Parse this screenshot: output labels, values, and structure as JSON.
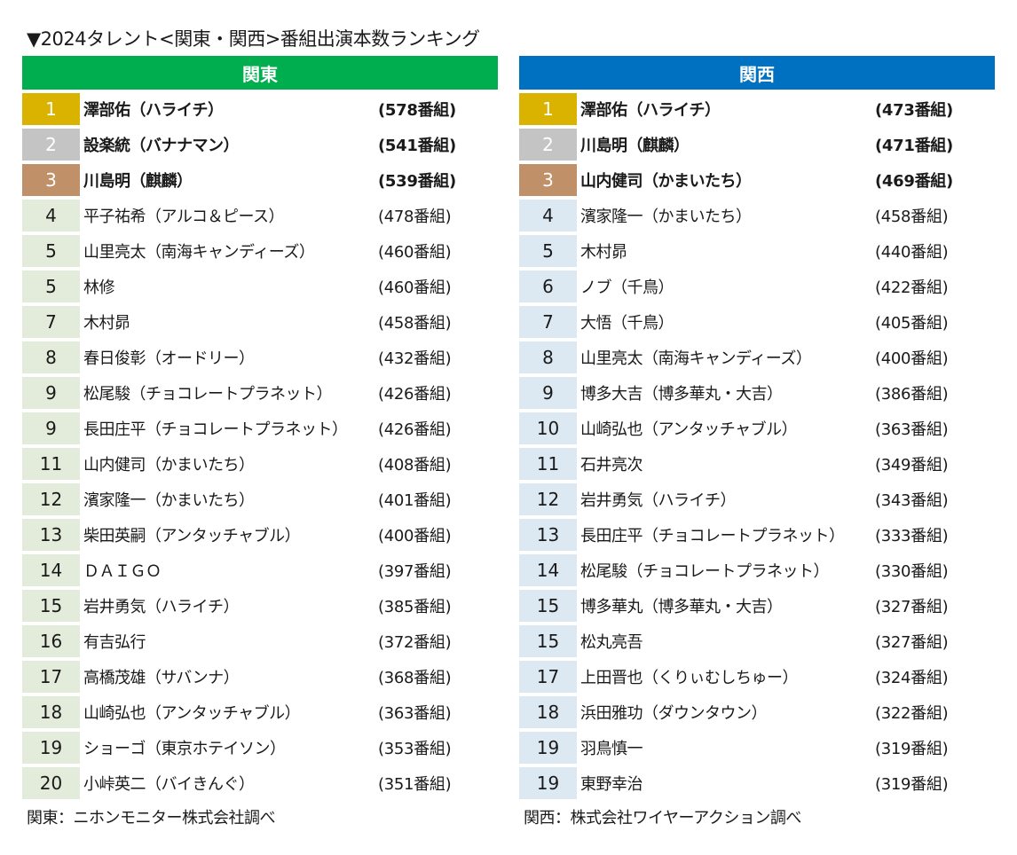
{
  "title": "▼2024タレント<関東・関西>番組出演本数ランキング",
  "colors": {
    "kanto_header": "#00ad4f",
    "kansai_header": "#0070c0",
    "gold": "#d9b300",
    "silver": "#c4c4c4",
    "bronze": "#c09068",
    "kanto_rank_bg": "#e3ecda",
    "kansai_rank_bg": "#dce8f2"
  },
  "kanto": {
    "header": "関東",
    "rows": [
      {
        "rank": "1",
        "name": "澤部佑（ハライチ）",
        "count": "(578番組)"
      },
      {
        "rank": "2",
        "name": "設楽統（バナナマン）",
        "count": "(541番組)"
      },
      {
        "rank": "3",
        "name": "川島明（麒麟）",
        "count": "(539番組)"
      },
      {
        "rank": "4",
        "name": "平子祐希（アルコ＆ピース）",
        "count": "(478番組)"
      },
      {
        "rank": "5",
        "name": "山里亮太（南海キャンディーズ）",
        "count": "(460番組)"
      },
      {
        "rank": "5",
        "name": "林修",
        "count": "(460番組)"
      },
      {
        "rank": "7",
        "name": "木村昴",
        "count": "(458番組)"
      },
      {
        "rank": "8",
        "name": "春日俊彰（オードリー）",
        "count": "(432番組)"
      },
      {
        "rank": "9",
        "name": "松尾駿（チョコレートプラネット）",
        "count": "(426番組)"
      },
      {
        "rank": "9",
        "name": "長田庄平（チョコレートプラネット）",
        "count": "(426番組)"
      },
      {
        "rank": "11",
        "name": "山内健司（かまいたち）",
        "count": "(408番組)"
      },
      {
        "rank": "12",
        "name": "濱家隆一（かまいたち）",
        "count": "(401番組)"
      },
      {
        "rank": "13",
        "name": "柴田英嗣（アンタッチャブル）",
        "count": "(400番組)"
      },
      {
        "rank": "14",
        "name": "ＤＡＩＧＯ",
        "count": "(397番組)"
      },
      {
        "rank": "15",
        "name": "岩井勇気（ハライチ）",
        "count": "(385番組)"
      },
      {
        "rank": "16",
        "name": "有吉弘行",
        "count": "(372番組)"
      },
      {
        "rank": "17",
        "name": "高橋茂雄（サバンナ）",
        "count": "(368番組)"
      },
      {
        "rank": "18",
        "name": "山崎弘也（アンタッチャブル）",
        "count": "(363番組)"
      },
      {
        "rank": "19",
        "name": "ショーゴ（東京ホテイソン）",
        "count": "(353番組)"
      },
      {
        "rank": "20",
        "name": "小峠英二（バイきんぐ）",
        "count": "(351番組)"
      }
    ],
    "source": "関東：ニホンモニター株式会社調べ"
  },
  "kansai": {
    "header": "関西",
    "rows": [
      {
        "rank": "1",
        "name": "澤部佑（ハライチ）",
        "count": "(473番組)"
      },
      {
        "rank": "2",
        "name": "川島明（麒麟）",
        "count": "(471番組)"
      },
      {
        "rank": "3",
        "name": "山内健司（かまいたち）",
        "count": "(469番組)"
      },
      {
        "rank": "4",
        "name": "濱家隆一（かまいたち）",
        "count": "(458番組)"
      },
      {
        "rank": "5",
        "name": "木村昴",
        "count": "(440番組)"
      },
      {
        "rank": "6",
        "name": "ノブ（千鳥）",
        "count": "(422番組)"
      },
      {
        "rank": "7",
        "name": "大悟（千鳥）",
        "count": "(405番組)"
      },
      {
        "rank": "8",
        "name": "山里亮太（南海キャンディーズ）",
        "count": "(400番組)"
      },
      {
        "rank": "9",
        "name": "博多大吉（博多華丸・大吉）",
        "count": "(386番組)"
      },
      {
        "rank": "10",
        "name": "山崎弘也（アンタッチャブル）",
        "count": "(363番組)"
      },
      {
        "rank": "11",
        "name": "石井亮次",
        "count": "(349番組)"
      },
      {
        "rank": "12",
        "name": "岩井勇気（ハライチ）",
        "count": "(343番組)"
      },
      {
        "rank": "13",
        "name": "長田庄平（チョコレートプラネット）",
        "count": "(333番組)"
      },
      {
        "rank": "14",
        "name": "松尾駿（チョコレートプラネット）",
        "count": "(330番組)"
      },
      {
        "rank": "15",
        "name": "博多華丸（博多華丸・大吉）",
        "count": "(327番組)"
      },
      {
        "rank": "15",
        "name": "松丸亮吾",
        "count": "(327番組)"
      },
      {
        "rank": "17",
        "name": "上田晋也（くりぃむしちゅー）",
        "count": "(324番組)"
      },
      {
        "rank": "18",
        "name": "浜田雅功（ダウンタウン）",
        "count": "(322番組)"
      },
      {
        "rank": "19",
        "name": "羽鳥慎一",
        "count": "(319番組)"
      },
      {
        "rank": "19",
        "name": "東野幸治",
        "count": "(319番組)"
      }
    ],
    "source": "関西：株式会社ワイヤーアクション調べ"
  }
}
